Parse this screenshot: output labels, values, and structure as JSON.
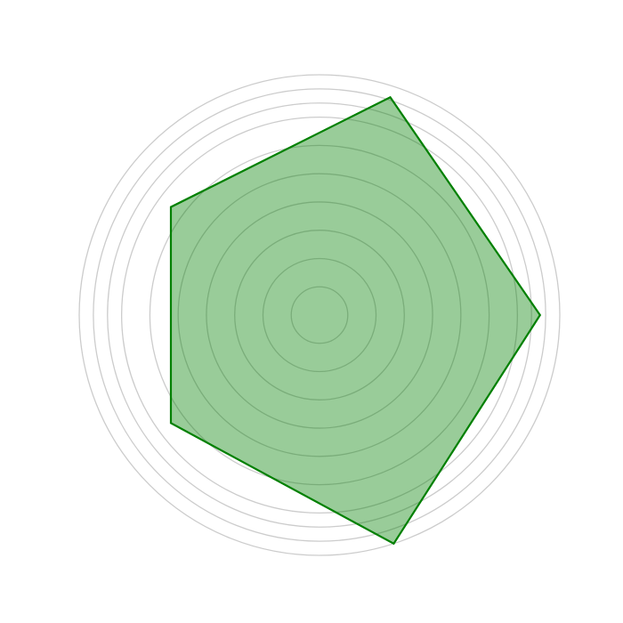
{
  "chart_data": {
    "type": "radar",
    "title": "",
    "axes_count": 5,
    "rmax": 8.5,
    "rings": [
      1,
      2,
      3,
      4,
      5,
      6,
      7,
      7.5,
      8,
      8.5
    ],
    "series": [
      {
        "values": [
          7.8,
          8.5,
          6.5,
          6.5,
          8.1
        ],
        "color": "#008000",
        "fill_opacity": 0.4
      }
    ],
    "grid": true,
    "legend": "none"
  }
}
